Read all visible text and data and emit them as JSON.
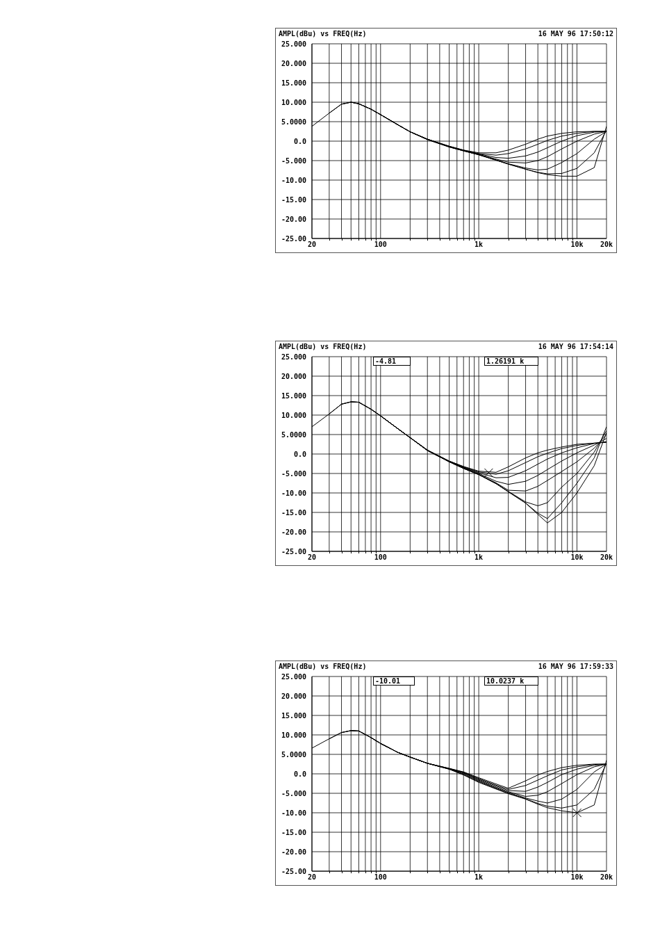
{
  "chart_data": [
    {
      "type": "line",
      "title": "AMPL(dBu) vs FREQ(Hz)",
      "subtitle": "16 MAY 96 17:50:12",
      "log": "x",
      "grid": true,
      "marker": "none",
      "line_style": "solid",
      "xlim": [
        20,
        20000
      ],
      "xticks": [
        {
          "value": 20,
          "label": "20"
        },
        {
          "value": 30,
          "label": null
        },
        {
          "value": 40,
          "label": null
        },
        {
          "value": 50,
          "label": null
        },
        {
          "value": 60,
          "label": null
        },
        {
          "value": 70,
          "label": null
        },
        {
          "value": 80,
          "label": null
        },
        {
          "value": 90,
          "label": null
        },
        {
          "value": 100,
          "label": "100"
        },
        {
          "value": 200,
          "label": null
        },
        {
          "value": 300,
          "label": null
        },
        {
          "value": 400,
          "label": null
        },
        {
          "value": 500,
          "label": null
        },
        {
          "value": 600,
          "label": null
        },
        {
          "value": 700,
          "label": null
        },
        {
          "value": 800,
          "label": null
        },
        {
          "value": 900,
          "label": null
        },
        {
          "value": 1000,
          "label": "1k"
        },
        {
          "value": 2000,
          "label": null
        },
        {
          "value": 3000,
          "label": null
        },
        {
          "value": 4000,
          "label": null
        },
        {
          "value": 5000,
          "label": null
        },
        {
          "value": 6000,
          "label": null
        },
        {
          "value": 7000,
          "label": null
        },
        {
          "value": 8000,
          "label": null
        },
        {
          "value": 9000,
          "label": null
        },
        {
          "value": 10000,
          "label": "10k"
        },
        {
          "value": 20000,
          "label": "20k"
        }
      ],
      "ylim": [
        -25,
        25
      ],
      "yticks": [
        {
          "value": 25,
          "label": "25.000"
        },
        {
          "value": 20,
          "label": "20.000"
        },
        {
          "value": 15,
          "label": "15.000"
        },
        {
          "value": 10,
          "label": "10.000"
        },
        {
          "value": 5,
          "label": "5.0000"
        },
        {
          "value": 0,
          "label": "0.0"
        },
        {
          "value": -5,
          "label": "-5.000"
        },
        {
          "value": -10,
          "label": "-10.00"
        },
        {
          "value": -15,
          "label": "-15.00"
        },
        {
          "value": -20,
          "label": "-20.00"
        },
        {
          "value": -25,
          "label": "-25.00"
        }
      ],
      "x": [
        20,
        30,
        40,
        50,
        60,
        80,
        100,
        150,
        200,
        300,
        500,
        700,
        1000,
        1500,
        2000,
        3000,
        4000,
        5000,
        7000,
        10000,
        15000,
        20000
      ],
      "series": [
        {
          "color": "#000000",
          "values": [
            3.8,
            7.2,
            9.5,
            10,
            9.6,
            8.2,
            6.8,
            4.2,
            2.4,
            0.5,
            -1.3,
            -2.3,
            -3.0,
            -3.0,
            -2.3,
            -0.8,
            0.5,
            1.3,
            2.0,
            2.4,
            2.5,
            2.5
          ]
        },
        {
          "color": "#000000",
          "values": [
            null,
            7.2,
            9.5,
            10,
            9.6,
            8.2,
            6.8,
            4.2,
            2.4,
            0.5,
            -1.3,
            -2.3,
            -3.2,
            -3.6,
            -3.2,
            -2.0,
            -0.8,
            0.2,
            1.3,
            2.0,
            2.5,
            2.5
          ]
        },
        {
          "color": "#000000",
          "values": [
            null,
            null,
            9.5,
            10,
            9.6,
            8.2,
            6.8,
            4.2,
            2.4,
            0.5,
            -1.4,
            -2.4,
            -3.3,
            -4.2,
            -4.4,
            -3.8,
            -2.8,
            -1.7,
            0.0,
            1.4,
            2.3,
            2.5
          ]
        },
        {
          "color": "#000000",
          "values": [
            null,
            null,
            null,
            10,
            9.6,
            8.2,
            6.8,
            4.2,
            2.4,
            0.5,
            -1.4,
            -2.4,
            -3.4,
            -4.6,
            -5.4,
            -5.6,
            -5.0,
            -4.0,
            -2.0,
            0.0,
            1.8,
            2.5
          ]
        },
        {
          "color": "#000000",
          "values": [
            null,
            null,
            null,
            null,
            9.6,
            8.2,
            6.8,
            4.2,
            2.4,
            0.4,
            -1.5,
            -2.5,
            -3.5,
            -4.8,
            -5.8,
            -6.9,
            -7.4,
            -7.2,
            -5.5,
            -3.2,
            0.5,
            2.5
          ]
        },
        {
          "color": "#000000",
          "values": [
            null,
            null,
            null,
            null,
            null,
            8.2,
            6.8,
            4.2,
            2.4,
            0.4,
            -1.5,
            -2.5,
            -3.5,
            -4.9,
            -5.9,
            -7.2,
            -8.0,
            -8.4,
            -8.3,
            -7.0,
            -3.0,
            2.8
          ]
        },
        {
          "color": "#000000",
          "values": [
            null,
            null,
            null,
            null,
            null,
            null,
            6.8,
            4.2,
            2.4,
            0.4,
            -1.5,
            -2.5,
            -3.5,
            -4.9,
            -5.9,
            -7.2,
            -8.1,
            -8.6,
            -9.0,
            -9.0,
            -6.8,
            3.8
          ]
        }
      ]
    },
    {
      "type": "line",
      "title": "AMPL(dBu) vs FREQ(Hz)",
      "subtitle": "16 MAY 96 17:54:14",
      "log": "x",
      "grid": true,
      "marker": "none",
      "line_style": "solid",
      "annotations": [
        "-4.81",
        "1.26191 k"
      ],
      "xlim": [
        20,
        20000
      ],
      "xticks": [
        {
          "value": 20,
          "label": "20"
        },
        {
          "value": 30,
          "label": null
        },
        {
          "value": 40,
          "label": null
        },
        {
          "value": 50,
          "label": null
        },
        {
          "value": 60,
          "label": null
        },
        {
          "value": 70,
          "label": null
        },
        {
          "value": 80,
          "label": null
        },
        {
          "value": 90,
          "label": null
        },
        {
          "value": 100,
          "label": "100"
        },
        {
          "value": 200,
          "label": null
        },
        {
          "value": 300,
          "label": null
        },
        {
          "value": 400,
          "label": null
        },
        {
          "value": 500,
          "label": null
        },
        {
          "value": 600,
          "label": null
        },
        {
          "value": 700,
          "label": null
        },
        {
          "value": 800,
          "label": null
        },
        {
          "value": 900,
          "label": null
        },
        {
          "value": 1000,
          "label": "1k"
        },
        {
          "value": 2000,
          "label": null
        },
        {
          "value": 3000,
          "label": null
        },
        {
          "value": 4000,
          "label": null
        },
        {
          "value": 5000,
          "label": null
        },
        {
          "value": 6000,
          "label": null
        },
        {
          "value": 7000,
          "label": null
        },
        {
          "value": 8000,
          "label": null
        },
        {
          "value": 9000,
          "label": null
        },
        {
          "value": 10000,
          "label": "10k"
        },
        {
          "value": 20000,
          "label": "20k"
        }
      ],
      "ylim": [
        -25,
        25
      ],
      "yticks": [
        {
          "value": 25,
          "label": "25.000"
        },
        {
          "value": 20,
          "label": "20.000"
        },
        {
          "value": 15,
          "label": "15.000"
        },
        {
          "value": 10,
          "label": "10.000"
        },
        {
          "value": 5,
          "label": "5.0000"
        },
        {
          "value": 0,
          "label": "0.0"
        },
        {
          "value": -5,
          "label": "-5.000"
        },
        {
          "value": -10,
          "label": "-10.00"
        },
        {
          "value": -15,
          "label": "-15.00"
        },
        {
          "value": -20,
          "label": "-20.00"
        },
        {
          "value": -25,
          "label": "-25.00"
        }
      ],
      "x": [
        20,
        30,
        40,
        50,
        60,
        80,
        100,
        150,
        200,
        300,
        500,
        700,
        1000,
        1500,
        2000,
        3000,
        4000,
        5000,
        7000,
        10000,
        15000,
        20000
      ],
      "series": [
        {
          "color": "#000000",
          "values": [
            7.0,
            10.3,
            12.8,
            13.4,
            13.3,
            11.5,
            9.8,
            6.5,
            4.2,
            1.0,
            -1.8,
            -3.2,
            -4.4,
            -4.7,
            -3.3,
            -1.0,
            0.3,
            1.0,
            1.8,
            2.5,
            2.8,
            3.0
          ]
        },
        {
          "color": "#000000",
          "values": [
            null,
            10.3,
            12.8,
            13.4,
            13.3,
            11.5,
            9.8,
            6.5,
            4.2,
            1.0,
            -1.8,
            -3.3,
            -4.6,
            -5.2,
            -4.3,
            -2.2,
            -0.7,
            0.2,
            1.4,
            2.2,
            2.8,
            3.0
          ]
        },
        {
          "color": "#000000",
          "values": [
            null,
            null,
            12.8,
            13.4,
            13.3,
            11.5,
            9.8,
            6.5,
            4.2,
            1.0,
            -1.9,
            -3.4,
            -4.8,
            -6.1,
            -6.0,
            -4.3,
            -2.6,
            -1.3,
            0.3,
            1.6,
            2.7,
            3.2
          ]
        },
        {
          "color": "#000000",
          "values": [
            null,
            null,
            null,
            13.4,
            13.3,
            11.5,
            9.8,
            6.5,
            4.2,
            1.0,
            -1.9,
            -3.5,
            -5.0,
            -7.0,
            -7.8,
            -7.0,
            -5.5,
            -4.0,
            -1.8,
            0.3,
            2.3,
            4.0
          ]
        },
        {
          "color": "#000000",
          "values": [
            null,
            null,
            null,
            null,
            13.3,
            11.5,
            9.8,
            6.5,
            4.2,
            0.9,
            -2.0,
            -3.6,
            -5.2,
            -7.4,
            -9.3,
            -9.5,
            -8.3,
            -6.8,
            -4.5,
            -2.0,
            1.5,
            5.0
          ]
        },
        {
          "color": "#000000",
          "values": [
            null,
            null,
            null,
            null,
            null,
            11.5,
            9.8,
            6.5,
            4.2,
            0.9,
            -2.0,
            -3.7,
            -5.3,
            -7.6,
            -9.6,
            -12.3,
            -13.3,
            -12.5,
            -8.5,
            -5.0,
            0.5,
            6.0
          ]
        },
        {
          "color": "#000000",
          "values": [
            null,
            null,
            null,
            null,
            null,
            null,
            9.8,
            6.5,
            4.2,
            0.9,
            -2.0,
            -3.7,
            -5.3,
            -7.6,
            -9.7,
            -12.6,
            -15.2,
            -16.6,
            -12.5,
            -7.5,
            -1.0,
            7.0
          ]
        },
        {
          "color": "#000000",
          "values": [
            null,
            null,
            null,
            null,
            null,
            null,
            null,
            6.5,
            4.2,
            0.9,
            -2.0,
            -3.7,
            -5.3,
            -7.6,
            -9.7,
            -12.6,
            -15.5,
            -17.7,
            -15.0,
            -10.0,
            -3.0,
            5.5
          ]
        },
        {
          "type": "scatter",
          "marker": "cross",
          "color": "#000000",
          "x": [
            1261.91
          ],
          "values": [
            -4.81
          ]
        }
      ]
    },
    {
      "type": "line",
      "title": "AMPL(dBu) vs FREQ(Hz)",
      "subtitle": "16 MAY 96 17:59:33",
      "log": "x",
      "grid": true,
      "marker": "none",
      "line_style": "solid",
      "annotations": [
        "-10.01",
        "10.0237 k"
      ],
      "xlim": [
        20,
        20000
      ],
      "xticks": [
        {
          "value": 20,
          "label": "20"
        },
        {
          "value": 30,
          "label": null
        },
        {
          "value": 40,
          "label": null
        },
        {
          "value": 50,
          "label": null
        },
        {
          "value": 60,
          "label": null
        },
        {
          "value": 70,
          "label": null
        },
        {
          "value": 80,
          "label": null
        },
        {
          "value": 90,
          "label": null
        },
        {
          "value": 100,
          "label": "100"
        },
        {
          "value": 200,
          "label": null
        },
        {
          "value": 300,
          "label": null
        },
        {
          "value": 400,
          "label": null
        },
        {
          "value": 500,
          "label": null
        },
        {
          "value": 600,
          "label": null
        },
        {
          "value": 700,
          "label": null
        },
        {
          "value": 800,
          "label": null
        },
        {
          "value": 900,
          "label": null
        },
        {
          "value": 1000,
          "label": "1k"
        },
        {
          "value": 2000,
          "label": null
        },
        {
          "value": 3000,
          "label": null
        },
        {
          "value": 4000,
          "label": null
        },
        {
          "value": 5000,
          "label": null
        },
        {
          "value": 6000,
          "label": null
        },
        {
          "value": 7000,
          "label": null
        },
        {
          "value": 8000,
          "label": null
        },
        {
          "value": 9000,
          "label": null
        },
        {
          "value": 10000,
          "label": "10k"
        },
        {
          "value": 20000,
          "label": "20k"
        }
      ],
      "ylim": [
        -25,
        25
      ],
      "yticks": [
        {
          "value": 25,
          "label": "25.000"
        },
        {
          "value": 20,
          "label": "20.000"
        },
        {
          "value": 15,
          "label": "15.000"
        },
        {
          "value": 10,
          "label": "10.000"
        },
        {
          "value": 5,
          "label": "5.0000"
        },
        {
          "value": 0,
          "label": "0.0"
        },
        {
          "value": -5,
          "label": "-5.000"
        },
        {
          "value": -10,
          "label": "-10.00"
        },
        {
          "value": -15,
          "label": "-15.00"
        },
        {
          "value": -20,
          "label": "-20.00"
        },
        {
          "value": -25,
          "label": "-25.00"
        }
      ],
      "x": [
        20,
        30,
        40,
        50,
        60,
        80,
        100,
        150,
        200,
        300,
        500,
        700,
        1000,
        1500,
        2000,
        3000,
        4000,
        5000,
        7000,
        10000,
        15000,
        20000
      ],
      "series": [
        {
          "color": "#000000",
          "values": [
            6.6,
            9.0,
            10.6,
            11.1,
            11.0,
            9.3,
            7.8,
            5.5,
            4.3,
            2.7,
            1.4,
            0.5,
            -1.0,
            -2.6,
            -3.7,
            -1.8,
            -0.3,
            0.6,
            1.6,
            2.2,
            2.5,
            2.5
          ]
        },
        {
          "color": "#000000",
          "values": [
            null,
            9.0,
            10.6,
            11.1,
            11.0,
            9.3,
            7.8,
            5.5,
            4.3,
            2.7,
            1.4,
            0.4,
            -1.2,
            -2.9,
            -4.0,
            -3.0,
            -1.6,
            -0.5,
            1.0,
            1.8,
            2.4,
            2.5
          ]
        },
        {
          "color": "#000000",
          "values": [
            null,
            null,
            10.6,
            11.1,
            11.0,
            9.3,
            7.8,
            5.5,
            4.3,
            2.7,
            1.3,
            0.3,
            -1.4,
            -3.1,
            -4.3,
            -4.5,
            -3.4,
            -2.2,
            -0.2,
            1.2,
            2.2,
            2.5
          ]
        },
        {
          "color": "#000000",
          "values": [
            null,
            null,
            null,
            11.1,
            11.0,
            9.3,
            7.8,
            5.5,
            4.3,
            2.7,
            1.3,
            0.2,
            -1.6,
            -3.4,
            -4.6,
            -5.8,
            -5.5,
            -4.6,
            -2.5,
            -0.2,
            1.8,
            2.5
          ]
        },
        {
          "color": "#000000",
          "values": [
            null,
            null,
            null,
            null,
            11.0,
            9.3,
            7.8,
            5.5,
            4.3,
            2.7,
            1.2,
            0.0,
            -1.8,
            -3.6,
            -4.8,
            -6.2,
            -7.0,
            -7.5,
            -6.5,
            -4.0,
            0.5,
            2.5
          ]
        },
        {
          "color": "#000000",
          "values": [
            null,
            null,
            null,
            null,
            null,
            9.3,
            7.8,
            5.5,
            4.3,
            2.7,
            1.2,
            -0.2,
            -2.0,
            -3.8,
            -5.0,
            -6.4,
            -7.6,
            -8.3,
            -8.8,
            -8.0,
            -4.0,
            2.7
          ]
        },
        {
          "color": "#000000",
          "values": [
            null,
            null,
            null,
            null,
            null,
            null,
            7.8,
            5.5,
            4.3,
            2.7,
            1.2,
            -0.3,
            -2.2,
            -3.9,
            -5.1,
            -6.5,
            -7.8,
            -8.7,
            -9.5,
            -10.0,
            -8.0,
            3.5
          ]
        },
        {
          "type": "scatter",
          "marker": "cross",
          "color": "#000000",
          "x": [
            10023.7
          ],
          "values": [
            -10.01
          ]
        }
      ]
    }
  ]
}
